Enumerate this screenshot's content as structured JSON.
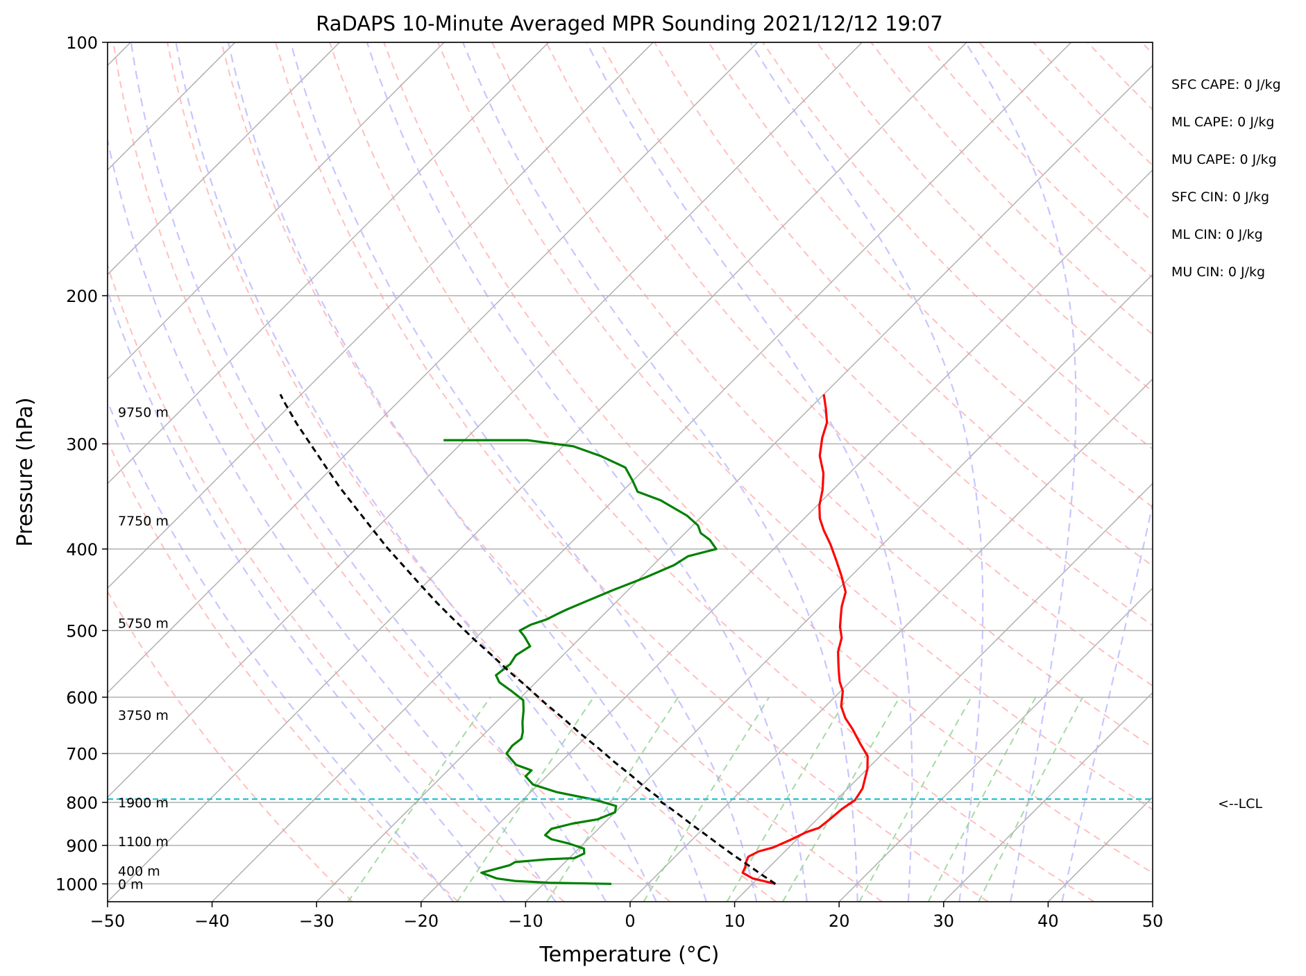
{
  "chart_data": {
    "type": "skew-t",
    "title": "RaDAPS 10-Minute Averaged MPR Sounding 2021/12/12 19:07",
    "xlabel": "Temperature (°C)",
    "ylabel": "Pressure (hPa)",
    "xlim": [
      -50,
      50
    ],
    "ylim": [
      1050,
      100
    ],
    "y_scale": "log",
    "x_ticks": [
      -50,
      -40,
      -30,
      -20,
      -10,
      0,
      10,
      20,
      30,
      40,
      50
    ],
    "x_tick_labels": [
      "−50",
      "−40",
      "−30",
      "−20",
      "−10",
      "0",
      "10",
      "20",
      "30",
      "40",
      "50"
    ],
    "y_ticks": [
      1000,
      900,
      800,
      700,
      600,
      500,
      400,
      300,
      200,
      100
    ],
    "y_tick_labels": [
      "1000",
      "900",
      "800",
      "700",
      "600",
      "500",
      "400",
      "300",
      "200",
      "100"
    ],
    "grid": true,
    "height_labels": [
      {
        "text": "0 m",
        "p": 1000
      },
      {
        "text": "400 m",
        "p": 965
      },
      {
        "text": "1100 m",
        "p": 890
      },
      {
        "text": "1900 m",
        "p": 800
      },
      {
        "text": "3750 m",
        "p": 630
      },
      {
        "text": "5750 m",
        "p": 490
      },
      {
        "text": "7750 m",
        "p": 370
      },
      {
        "text": "9750 m",
        "p": 275
      }
    ],
    "indices": [
      "SFC CAPE: 0 J/kg",
      "ML CAPE: 0 J/kg",
      "MU CAPE: 0 J/kg",
      "SFC CIN: 0 J/kg",
      "ML CIN: 0 J/kg",
      "MU CIN: 0 J/kg"
    ],
    "lcl": {
      "p": 793,
      "label": "<--LCL"
    },
    "series": [
      {
        "color": "#ff0000",
        "points": [
          [
            12.2,
            1000
          ],
          [
            9.5,
            985
          ],
          [
            8.0,
            970
          ],
          [
            7.7,
            955
          ],
          [
            7.3,
            942
          ],
          [
            7.0,
            928
          ],
          [
            7.5,
            915
          ],
          [
            8.5,
            905
          ],
          [
            9.5,
            885
          ],
          [
            10.2,
            868
          ],
          [
            11.0,
            858
          ],
          [
            11.2,
            840
          ],
          [
            11.4,
            815
          ],
          [
            11.8,
            795
          ],
          [
            11.4,
            770
          ],
          [
            10.0,
            730
          ],
          [
            8.8,
            705
          ],
          [
            6.8,
            680
          ],
          [
            4.8,
            655
          ],
          [
            3.0,
            635
          ],
          [
            1.5,
            615
          ],
          [
            0.2,
            590
          ],
          [
            -1.0,
            575
          ],
          [
            -2.0,
            560
          ],
          [
            -3.0,
            545
          ],
          [
            -4.0,
            530
          ],
          [
            -5.0,
            510
          ],
          [
            -6.2,
            495
          ],
          [
            -7.2,
            480
          ],
          [
            -8.0,
            468
          ],
          [
            -9.0,
            450
          ],
          [
            -11.0,
            430
          ],
          [
            -13.0,
            412
          ],
          [
            -15.0,
            395
          ],
          [
            -17.0,
            380
          ],
          [
            -18.5,
            368
          ],
          [
            -19.8,
            355
          ],
          [
            -21.0,
            340
          ],
          [
            -22.5,
            325
          ],
          [
            -24.5,
            310
          ],
          [
            -26.0,
            295
          ],
          [
            -27.0,
            283
          ],
          [
            -28.5,
            272
          ],
          [
            -30.0,
            262
          ]
        ]
      },
      {
        "color": "#008000",
        "points": [
          [
            -3.5,
            1000
          ],
          [
            -9.5,
            997
          ],
          [
            -13.0,
            992
          ],
          [
            -15.0,
            985
          ],
          [
            -17.0,
            970
          ],
          [
            -16.0,
            960
          ],
          [
            -15.0,
            950
          ],
          [
            -14.8,
            942
          ],
          [
            -12.0,
            935
          ],
          [
            -9.5,
            932
          ],
          [
            -9.0,
            920
          ],
          [
            -9.5,
            908
          ],
          [
            -11.5,
            895
          ],
          [
            -13.5,
            885
          ],
          [
            -14.5,
            875
          ],
          [
            -14.5,
            860
          ],
          [
            -13.0,
            848
          ],
          [
            -11.0,
            838
          ],
          [
            -10.0,
            822
          ],
          [
            -10.5,
            808
          ],
          [
            -13.0,
            795
          ],
          [
            -17.5,
            778
          ],
          [
            -20.5,
            762
          ],
          [
            -22.0,
            745
          ],
          [
            -22.0,
            733
          ],
          [
            -24.0,
            722
          ],
          [
            -26.0,
            700
          ],
          [
            -26.2,
            685
          ],
          [
            -26.0,
            672
          ],
          [
            -26.5,
            660
          ],
          [
            -27.5,
            642
          ],
          [
            -28.5,
            622
          ],
          [
            -29.5,
            605
          ],
          [
            -31.5,
            590
          ],
          [
            -33.5,
            576
          ],
          [
            -34.5,
            565
          ],
          [
            -34.2,
            548
          ],
          [
            -34.5,
            535
          ],
          [
            -34.0,
            522
          ],
          [
            -35.5,
            508
          ],
          [
            -36.5,
            500
          ],
          [
            -36.0,
            492
          ],
          [
            -35.0,
            485
          ],
          [
            -34.5,
            478
          ],
          [
            -34.0,
            472
          ],
          [
            -33.0,
            462
          ],
          [
            -31.5,
            448
          ],
          [
            -29.5,
            432
          ],
          [
            -28.0,
            418
          ],
          [
            -27.5,
            408
          ],
          [
            -25.5,
            400
          ],
          [
            -27.0,
            390
          ],
          [
            -28.5,
            383
          ],
          [
            -29.5,
            375
          ],
          [
            -31.5,
            365
          ],
          [
            -35.5,
            350
          ],
          [
            -38.5,
            342
          ],
          [
            -40.0,
            332
          ],
          [
            -42.0,
            320
          ],
          [
            -45.5,
            310
          ],
          [
            -49.0,
            302
          ],
          [
            -54.0,
            297
          ],
          [
            -62.0,
            297
          ]
        ]
      },
      {
        "color": "#000000",
        "dashed": true,
        "points": [
          [
            12.2,
            1000
          ],
          [
            10.0,
            975
          ],
          [
            7.8,
            950
          ],
          [
            5.5,
            925
          ],
          [
            3.2,
            900
          ],
          [
            1.0,
            876
          ],
          [
            -1.2,
            853
          ],
          [
            -3.4,
            830
          ],
          [
            -5.6,
            808
          ],
          [
            -6.5,
            800
          ],
          [
            -7.2,
            790
          ],
          [
            -9.5,
            768
          ],
          [
            -12.0,
            743
          ],
          [
            -14.8,
            717
          ],
          [
            -17.7,
            690
          ],
          [
            -20.7,
            664
          ],
          [
            -23.8,
            637
          ],
          [
            -27.0,
            611
          ],
          [
            -30.2,
            585
          ],
          [
            -33.5,
            560
          ],
          [
            -36.8,
            535
          ],
          [
            -40.2,
            511
          ],
          [
            -43.6,
            487
          ],
          [
            -47.0,
            464
          ],
          [
            -50.4,
            441
          ],
          [
            -53.8,
            419
          ],
          [
            -57.2,
            398
          ],
          [
            -60.6,
            377
          ],
          [
            -64.0,
            357
          ],
          [
            -67.4,
            338
          ],
          [
            -70.8,
            319
          ],
          [
            -74.2,
            301
          ],
          [
            -77.6,
            284
          ],
          [
            -81.0,
            267
          ],
          [
            -82.0,
            262
          ]
        ]
      }
    ]
  }
}
